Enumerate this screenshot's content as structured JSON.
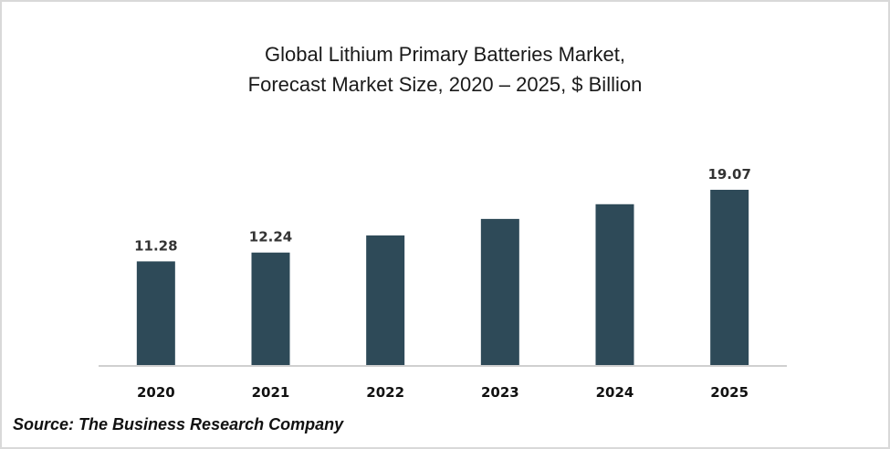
{
  "chart_data": {
    "type": "bar",
    "title_lines": [
      "Global Lithium Primary Batteries Market,",
      "Forecast Market Size, 2020 – 2025, $ Billion"
    ],
    "categories": [
      "2020",
      "2021",
      "2022",
      "2023",
      "2024",
      "2025"
    ],
    "values": [
      11.28,
      12.24,
      14.1,
      15.9,
      17.5,
      19.07
    ],
    "data_labels": [
      "11.28",
      "12.24",
      "",
      "",
      "",
      "19.07"
    ],
    "xlabel": "",
    "ylabel": "",
    "ylim": [
      0,
      21
    ],
    "grid": false,
    "legend": "none",
    "bar_color": "#2e4a58",
    "axis_color": "#d0d0d0"
  },
  "footer": {
    "source": "Source: The Business Research Company"
  }
}
